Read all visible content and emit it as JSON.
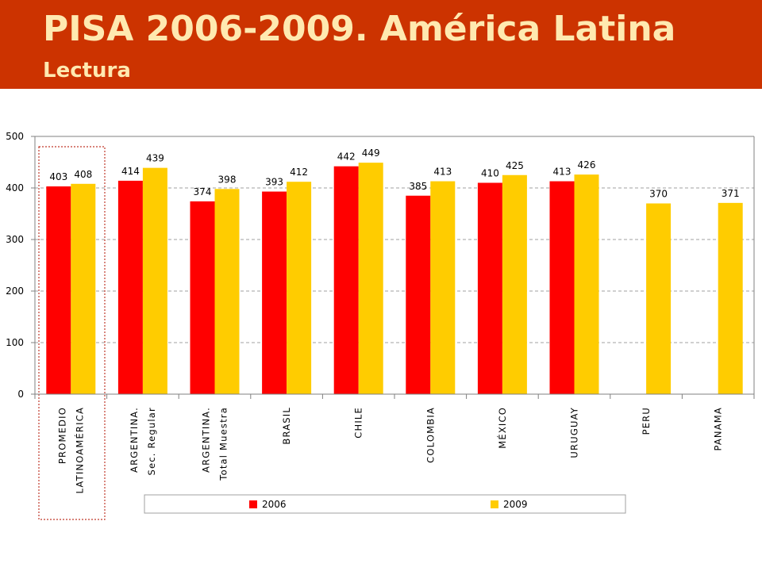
{
  "header": {
    "title": "PISA 2006-2009. América Latina",
    "subtitle": "Lectura"
  },
  "colors": {
    "header_bg": "#cc3300",
    "title_text": "#ffe9b0",
    "series_2006": "#ff0000",
    "series_2009": "#ffcc00",
    "highlight_box": "#c0392b"
  },
  "chart_data": {
    "type": "bar",
    "categories": [
      [
        "PROMEDIO",
        "LATINOAMÉRICA"
      ],
      [
        "ARGENTINA.",
        "Sec. Regular"
      ],
      [
        "ARGENTINA.",
        "Total Muestra"
      ],
      [
        "BRASIL"
      ],
      [
        "CHILE"
      ],
      [
        "COLOMBIA"
      ],
      [
        "MÉXICO"
      ],
      [
        "URUGUAY"
      ],
      [
        "PERU"
      ],
      [
        "PANAMA"
      ]
    ],
    "series": [
      {
        "name": "2006",
        "values": [
          403,
          414,
          374,
          393,
          442,
          385,
          410,
          413,
          null,
          null
        ]
      },
      {
        "name": "2009",
        "values": [
          408,
          439,
          398,
          412,
          449,
          413,
          425,
          426,
          370,
          371
        ]
      }
    ],
    "ylim": [
      0,
      500
    ],
    "yticks": [
      0,
      100,
      200,
      300,
      400,
      500
    ],
    "grid": true,
    "legend_position": "bottom",
    "highlighted_category": "PROMEDIO LATINOAMÉRICA"
  }
}
